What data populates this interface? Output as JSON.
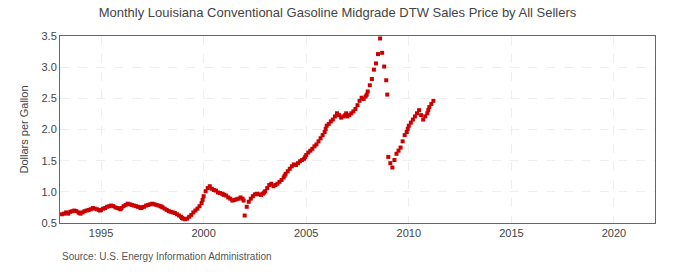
{
  "chart_data": {
    "type": "scatter",
    "title": "Monthly Louisiana Conventional Gasoline Midgrade DTW Sales Price by All Sellers",
    "ylabel": "Dollars per Gallon",
    "annotations": [
      "Source: U.S. Energy Information Administration"
    ],
    "color": "#cc0000",
    "marker": "square",
    "grid": true,
    "xlim": [
      1993.0,
      2022.0
    ],
    "ylim": [
      0.5,
      3.5
    ],
    "xticks": [
      1995,
      2000,
      2005,
      2010,
      2015,
      2020
    ],
    "yticks": [
      0.5,
      {
        "value": 1.0,
        "label": "1.0"
      },
      1.5,
      {
        "value": 2.0,
        "label": "2.0"
      },
      2.5,
      {
        "value": 3.0,
        "label": "3.0"
      },
      3.5
    ],
    "x": [
      1993.1,
      1993.2,
      1993.3,
      1993.4,
      1993.5,
      1993.6,
      1993.7,
      1993.8,
      1993.9,
      1993.95,
      1994.0,
      1994.1,
      1994.2,
      1994.3,
      1994.4,
      1994.5,
      1994.6,
      1994.7,
      1994.8,
      1994.9,
      1994.95,
      1995.0,
      1995.1,
      1995.2,
      1995.3,
      1995.4,
      1995.5,
      1995.6,
      1995.7,
      1995.8,
      1995.9,
      1995.95,
      1996.0,
      1996.1,
      1996.2,
      1996.3,
      1996.4,
      1996.5,
      1996.6,
      1996.7,
      1996.8,
      1996.9,
      1996.95,
      1997.0,
      1997.1,
      1997.2,
      1997.3,
      1997.4,
      1997.5,
      1997.6,
      1997.7,
      1997.8,
      1997.9,
      1997.95,
      1998.0,
      1998.1,
      1998.2,
      1998.3,
      1998.4,
      1998.5,
      1998.6,
      1998.7,
      1998.8,
      1998.9,
      1998.95,
      1999.0,
      1999.1,
      1999.2,
      1999.3,
      1999.4,
      1999.5,
      1999.6,
      1999.7,
      1999.8,
      1999.9,
      1999.95,
      2000.0,
      2000.1,
      2000.2,
      2000.3,
      2000.4,
      2000.5,
      2000.6,
      2000.7,
      2000.8,
      2000.9,
      2000.95,
      2001.0,
      2001.1,
      2001.2,
      2001.3,
      2001.4,
      2001.5,
      2001.6,
      2001.7,
      2001.8,
      2001.9,
      2001.95,
      2002.0,
      2002.1,
      2002.2,
      2002.3,
      2002.4,
      2002.5,
      2002.6,
      2002.7,
      2002.8,
      2002.9,
      2002.95,
      2003.0,
      2003.1,
      2003.2,
      2003.3,
      2003.4,
      2003.5,
      2003.6,
      2003.7,
      2003.8,
      2003.9,
      2003.95,
      2004.0,
      2004.1,
      2004.2,
      2004.3,
      2004.4,
      2004.5,
      2004.6,
      2004.7,
      2004.8,
      2004.9,
      2004.95,
      2005.0,
      2005.1,
      2005.2,
      2005.3,
      2005.4,
      2005.5,
      2005.6,
      2005.7,
      2005.8,
      2005.9,
      2005.95,
      2006.0,
      2006.1,
      2006.2,
      2006.3,
      2006.4,
      2006.5,
      2006.6,
      2006.7,
      2006.8,
      2006.9,
      2006.95,
      2007.0,
      2007.1,
      2007.2,
      2007.3,
      2007.4,
      2007.5,
      2007.6,
      2007.7,
      2007.8,
      2007.9,
      2007.95,
      2008.0,
      2008.1,
      2008.2,
      2008.3,
      2008.4,
      2008.5,
      2008.6,
      2008.7,
      2008.8,
      2008.9,
      2008.95,
      2009.0,
      2009.1,
      2009.2,
      2009.3,
      2009.4,
      2009.5,
      2009.6,
      2009.7,
      2009.8,
      2009.9,
      2009.95,
      2010.0,
      2010.1,
      2010.2,
      2010.3,
      2010.4,
      2010.5,
      2010.6,
      2010.7,
      2010.8,
      2010.9,
      2010.95,
      2011.0,
      2011.1,
      2011.2
    ],
    "values": [
      0.64,
      0.65,
      0.67,
      0.65,
      0.68,
      0.69,
      0.7,
      0.69,
      0.67,
      0.66,
      0.65,
      0.67,
      0.69,
      0.7,
      0.71,
      0.72,
      0.74,
      0.73,
      0.72,
      0.71,
      0.7,
      0.71,
      0.73,
      0.74,
      0.76,
      0.77,
      0.78,
      0.77,
      0.75,
      0.74,
      0.73,
      0.72,
      0.74,
      0.77,
      0.79,
      0.81,
      0.8,
      0.79,
      0.78,
      0.77,
      0.76,
      0.75,
      0.74,
      0.75,
      0.76,
      0.78,
      0.79,
      0.8,
      0.81,
      0.8,
      0.79,
      0.78,
      0.77,
      0.76,
      0.75,
      0.73,
      0.71,
      0.69,
      0.68,
      0.67,
      0.66,
      0.64,
      0.62,
      0.6,
      0.58,
      0.57,
      0.56,
      0.57,
      0.6,
      0.63,
      0.67,
      0.7,
      0.73,
      0.77,
      0.82,
      0.87,
      0.93,
      1.01,
      1.06,
      1.09,
      1.05,
      1.03,
      1.02,
      0.99,
      0.98,
      0.97,
      0.96,
      0.95,
      0.94,
      0.91,
      0.89,
      0.86,
      0.87,
      0.88,
      0.89,
      0.91,
      0.89,
      0.86,
      0.62,
      0.76,
      0.84,
      0.89,
      0.93,
      0.96,
      0.97,
      0.96,
      0.95,
      0.97,
      0.99,
      1.01,
      1.06,
      1.11,
      1.13,
      1.09,
      1.11,
      1.13,
      1.16,
      1.19,
      1.23,
      1.26,
      1.29,
      1.33,
      1.37,
      1.41,
      1.44,
      1.43,
      1.46,
      1.49,
      1.51,
      1.53,
      1.56,
      1.59,
      1.63,
      1.66,
      1.69,
      1.73,
      1.76,
      1.81,
      1.86,
      1.91,
      1.96,
      2.01,
      2.06,
      2.09,
      2.13,
      2.16,
      2.21,
      2.26,
      2.23,
      2.19,
      2.21,
      2.23,
      2.26,
      2.21,
      2.23,
      2.26,
      2.29,
      2.33,
      2.39,
      2.46,
      2.51,
      2.49,
      2.53,
      2.56,
      2.61,
      2.71,
      2.81,
      2.96,
      3.06,
      3.21,
      3.46,
      3.23,
      3.01,
      2.79,
      2.56,
      1.56,
      1.46,
      1.39,
      1.51,
      1.61,
      1.66,
      1.71,
      1.81,
      1.91,
      1.96,
      2.01,
      2.06,
      2.11,
      2.16,
      2.21,
      2.26,
      2.31,
      2.23,
      2.16,
      2.21,
      2.26,
      2.31,
      2.36,
      2.41,
      2.46
    ]
  }
}
